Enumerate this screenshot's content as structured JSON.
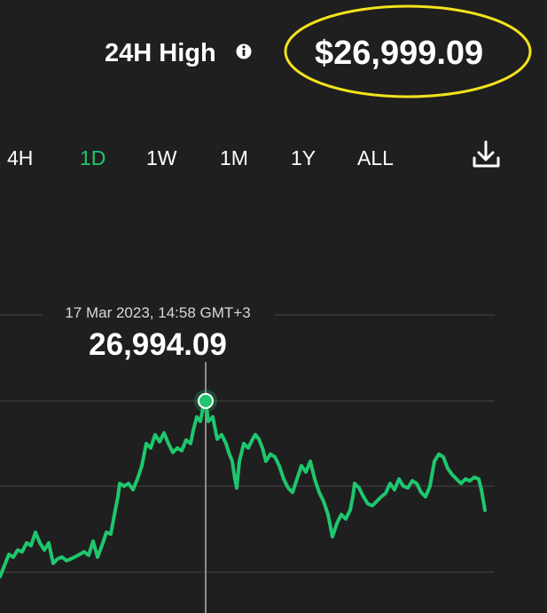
{
  "header": {
    "title": "24H High",
    "value": "$26,999.09"
  },
  "tabs": [
    "4H",
    "1D",
    "1W",
    "1M",
    "1Y",
    "ALL"
  ],
  "active_tab": 1,
  "tooltip": {
    "date": "17 Mar 2023, 14:58 GMT+3",
    "value": "26,994.09"
  }
}
